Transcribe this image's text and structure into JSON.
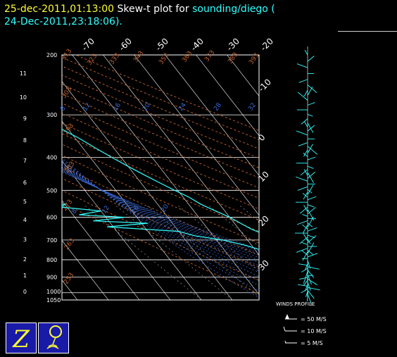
{
  "header": {
    "timestamp": "25-dec-2011,01:13:00",
    "title_prefix": "Skew-t plot for",
    "station": "sounding/diego",
    "run_open": "(",
    "run_time": "24-Dec-2011,23:18:06).",
    "colors": {
      "timestamp": "#ffff33",
      "station": "#33ffff",
      "text": "#ffffff"
    }
  },
  "legend": {
    "title": "WINDS PROFILE",
    "items": [
      {
        "label": "= 50 M/S",
        "icon": "wind-barb-pennant-icon"
      },
      {
        "label": "= 10 M/S",
        "icon": "wind-barb-full-icon"
      },
      {
        "label": "= 5 M/S",
        "icon": "wind-barb-half-icon"
      }
    ]
  },
  "logos": [
    {
      "name": "z-logo-icon",
      "glyph": "Z"
    },
    {
      "name": "balloon-logo-icon",
      "glyph": "balloon"
    }
  ],
  "chart_data": {
    "type": "line",
    "title": "",
    "pressure_levels_hpa": [
      200,
      300,
      400,
      500,
      600,
      700,
      800,
      900,
      1000,
      1050
    ],
    "height_km_ticks": [
      0,
      1,
      2,
      3,
      4,
      5,
      6,
      7,
      8,
      9,
      10,
      11
    ],
    "top_temp_ticks": [
      "-70",
      "-60",
      "-50",
      "-40",
      "-30",
      "-20"
    ],
    "right_temp_ticks": [
      "-10",
      "0",
      "10",
      "20",
      "30"
    ],
    "dry_adiabat_labels": [
      "313",
      "323",
      "333",
      "343",
      "353",
      "363",
      "373",
      "383",
      "393",
      "303",
      "293",
      "283",
      "273",
      "263",
      "253"
    ],
    "mixing_ratio_labels": [
      "8",
      "12",
      "16",
      "20",
      "24",
      "28",
      "32",
      "20",
      "16",
      "12",
      "8"
    ],
    "series": [
      {
        "name": "",
        "kind": "temperature",
        "color": "#33ffff",
        "points_p_t": [
          [
            200,
            -58
          ],
          [
            225,
            -56
          ],
          [
            250,
            -53
          ],
          [
            275,
            -50
          ],
          [
            300,
            -46
          ],
          [
            325,
            -43
          ],
          [
            350,
            -39
          ],
          [
            375,
            -36
          ],
          [
            400,
            -33
          ],
          [
            425,
            -30
          ],
          [
            450,
            -27
          ],
          [
            475,
            -24
          ],
          [
            500,
            -21
          ],
          [
            525,
            -18
          ],
          [
            550,
            -16
          ],
          [
            575,
            -13
          ],
          [
            600,
            -10
          ],
          [
            625,
            -8
          ],
          [
            650,
            -6
          ],
          [
            675,
            -3
          ],
          [
            700,
            -1
          ],
          [
            725,
            1
          ],
          [
            750,
            3
          ],
          [
            775,
            5
          ],
          [
            800,
            6
          ],
          [
            825,
            8
          ],
          [
            850,
            10
          ],
          [
            875,
            11
          ],
          [
            900,
            13
          ],
          [
            925,
            14
          ],
          [
            950,
            15
          ],
          [
            975,
            18
          ],
          [
            1000,
            20
          ],
          [
            1015,
            22
          ]
        ]
      },
      {
        "name": "",
        "kind": "dewpoint",
        "color": "#33ffff",
        "points_p_t": [
          [
            200,
            -77
          ],
          [
            215,
            -75
          ],
          [
            230,
            -72
          ],
          [
            245,
            -69
          ],
          [
            260,
            -66
          ],
          [
            275,
            -63
          ],
          [
            290,
            -66
          ],
          [
            300,
            -68
          ],
          [
            315,
            -67
          ],
          [
            330,
            -70
          ],
          [
            345,
            -67
          ],
          [
            355,
            -71
          ],
          [
            365,
            -66
          ],
          [
            380,
            -70
          ],
          [
            390,
            -62
          ],
          [
            400,
            -67
          ],
          [
            410,
            -64
          ],
          [
            420,
            -78
          ],
          [
            430,
            -64
          ],
          [
            440,
            -80
          ],
          [
            450,
            -66
          ],
          [
            460,
            -82
          ],
          [
            470,
            -68
          ],
          [
            480,
            -84
          ],
          [
            490,
            -70
          ],
          [
            500,
            -85
          ],
          [
            510,
            -70
          ],
          [
            520,
            -86
          ],
          [
            530,
            -70
          ],
          [
            540,
            -85
          ],
          [
            550,
            -60
          ],
          [
            560,
            -62
          ],
          [
            575,
            -50
          ],
          [
            590,
            -58
          ],
          [
            600,
            -44
          ],
          [
            615,
            -55
          ],
          [
            625,
            -38
          ],
          [
            640,
            -52
          ],
          [
            660,
            -30
          ],
          [
            680,
            -26
          ],
          [
            700,
            -18
          ],
          [
            725,
            -12
          ],
          [
            750,
            -8
          ],
          [
            775,
            -2
          ],
          [
            800,
            0
          ],
          [
            825,
            2
          ],
          [
            850,
            4
          ],
          [
            875,
            6
          ],
          [
            900,
            9
          ],
          [
            925,
            11
          ],
          [
            950,
            12
          ],
          [
            975,
            13
          ],
          [
            1000,
            15
          ],
          [
            1015,
            18
          ]
        ]
      }
    ],
    "wind_profile": {
      "levels_hpa": [
        200,
        250,
        300,
        350,
        400,
        450,
        500,
        550,
        600,
        650,
        700,
        750,
        800,
        850,
        900,
        950,
        1000
      ]
    },
    "grid": true
  }
}
